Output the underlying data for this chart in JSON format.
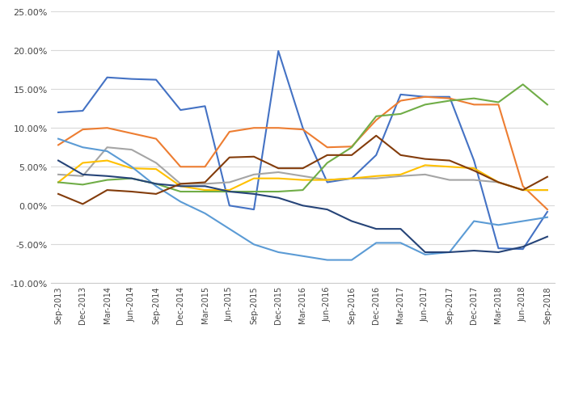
{
  "x_labels": [
    "Sep-2013",
    "Dec-2013",
    "Mar-2014",
    "Jun-2014",
    "Sep-2014",
    "Dec-2014",
    "Mar-2015",
    "Jun-2015",
    "Sep-2015",
    "Dec-2015",
    "Mar-2016",
    "Jun-2016",
    "Sep-2016",
    "Dec-2016",
    "Mar-2017",
    "Jun-2017",
    "Sep-2017",
    "Dec-2017",
    "Mar-2018",
    "Jun-2018",
    "Sep-2018"
  ],
  "series": {
    "Sydney": {
      "color": "#4472C4",
      "values": [
        0.12,
        0.122,
        0.165,
        0.163,
        0.162,
        0.123,
        0.128,
        0.0,
        -0.005,
        0.199,
        0.1,
        0.03,
        0.035,
        0.065,
        0.143,
        0.14,
        0.14,
        0.058,
        -0.055,
        -0.056,
        -0.008
      ]
    },
    "Melbourne": {
      "color": "#ED7D31",
      "values": [
        0.078,
        0.098,
        0.1,
        0.093,
        0.086,
        0.05,
        0.05,
        0.095,
        0.1,
        0.1,
        0.098,
        0.075,
        0.076,
        0.11,
        0.135,
        0.14,
        0.138,
        0.13,
        0.13,
        0.025,
        -0.005
      ]
    },
    "Brisbane": {
      "color": "#A5A5A5",
      "values": [
        0.04,
        0.038,
        0.075,
        0.072,
        0.055,
        0.028,
        0.028,
        0.03,
        0.04,
        0.043,
        0.038,
        0.033,
        0.035,
        0.035,
        0.038,
        0.04,
        0.033,
        0.033,
        0.03,
        0.02,
        0.02
      ]
    },
    "Adelaide": {
      "color": "#FFC000",
      "values": [
        0.03,
        0.055,
        0.058,
        0.048,
        0.047,
        0.025,
        0.02,
        0.02,
        0.035,
        0.035,
        0.033,
        0.033,
        0.035,
        0.038,
        0.04,
        0.052,
        0.05,
        0.048,
        0.03,
        0.02,
        0.02
      ]
    },
    "Perth": {
      "color": "#5B9BD5",
      "values": [
        0.086,
        0.075,
        0.07,
        0.05,
        0.025,
        0.005,
        -0.01,
        -0.03,
        -0.05,
        -0.06,
        -0.065,
        -0.07,
        -0.07,
        -0.048,
        -0.048,
        -0.063,
        -0.06,
        -0.02,
        -0.025,
        -0.02,
        -0.015
      ]
    },
    "Hobart": {
      "color": "#70AD47",
      "values": [
        0.03,
        0.027,
        0.033,
        0.035,
        0.028,
        0.018,
        0.018,
        0.018,
        0.018,
        0.018,
        0.02,
        0.055,
        0.075,
        0.115,
        0.118,
        0.13,
        0.135,
        0.138,
        0.133,
        0.156,
        0.13
      ]
    },
    "Darwin": {
      "color": "#264478",
      "values": [
        0.058,
        0.04,
        0.038,
        0.035,
        0.028,
        0.025,
        0.025,
        0.018,
        0.015,
        0.01,
        0.0,
        -0.005,
        -0.02,
        -0.03,
        -0.03,
        -0.06,
        -0.06,
        -0.058,
        -0.06,
        -0.053,
        -0.04
      ]
    },
    "Canberra": {
      "color": "#833C0B",
      "values": [
        0.015,
        0.002,
        0.02,
        0.018,
        0.015,
        0.028,
        0.03,
        0.062,
        0.063,
        0.048,
        0.048,
        0.065,
        0.065,
        0.09,
        0.065,
        0.06,
        0.058,
        0.045,
        0.03,
        0.02,
        0.037
      ]
    }
  },
  "ylim": [
    -0.1,
    0.25
  ],
  "yticks": [
    -0.1,
    -0.05,
    0.0,
    0.05,
    0.1,
    0.15,
    0.2,
    0.25
  ],
  "background_color": "#ffffff",
  "grid_color": "#d9d9d9"
}
